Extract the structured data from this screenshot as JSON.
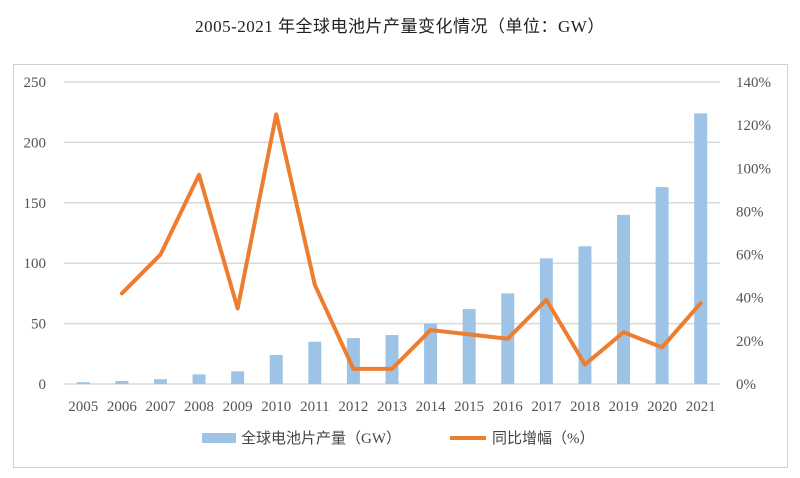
{
  "chart_data": {
    "type": "bar+line",
    "title": "2005-2021 年全球电池片产量变化情况（单位：GW）",
    "categories": [
      "2005",
      "2006",
      "2007",
      "2008",
      "2009",
      "2010",
      "2011",
      "2012",
      "2013",
      "2014",
      "2015",
      "2016",
      "2017",
      "2018",
      "2019",
      "2020",
      "2021"
    ],
    "series": [
      {
        "name": "全球电池片产量（GW）",
        "type": "bar",
        "axis": "left",
        "color": "#9dc3e6",
        "values": [
          1.5,
          2.5,
          4,
          8,
          10.5,
          24,
          35,
          38,
          40.5,
          50,
          62,
          75,
          104,
          114,
          140,
          163,
          224
        ]
      },
      {
        "name": "同比增幅（%）",
        "type": "line",
        "axis": "right",
        "color": "#ed7d31",
        "values": [
          null,
          42,
          60,
          97,
          35,
          125,
          46,
          7,
          7,
          25,
          23,
          21,
          39,
          9,
          24,
          17,
          37.5
        ]
      }
    ],
    "ylim_left": [
      0,
      250
    ],
    "yticks_left": [
      "0",
      "50",
      "100",
      "150",
      "200",
      "250"
    ],
    "ylim_right": [
      0,
      140
    ],
    "yticks_right": [
      "0%",
      "20%",
      "40%",
      "60%",
      "80%",
      "100%",
      "120%",
      "140%"
    ],
    "grid": true,
    "legend": "bottom"
  }
}
